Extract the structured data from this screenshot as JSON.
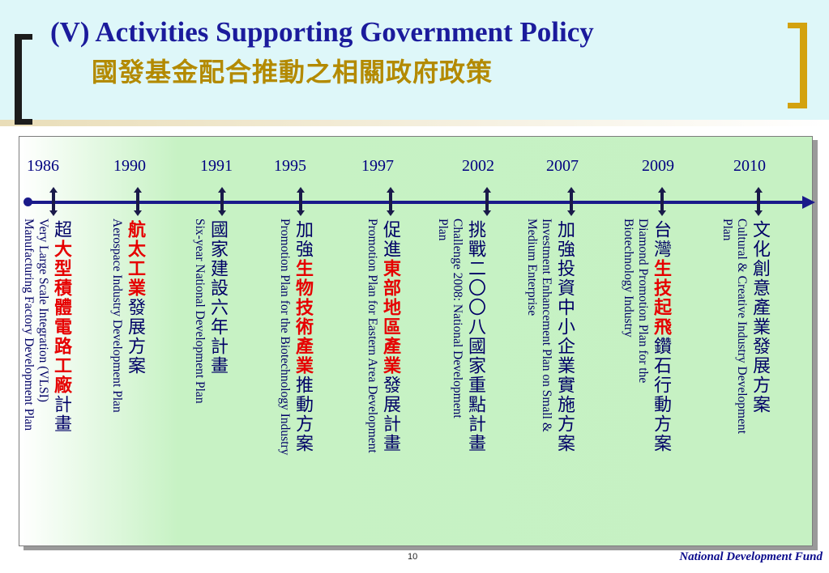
{
  "header": {
    "title_en": "(V) Activities Supporting Government Policy",
    "title_zh": "國發基金配合推動之相關政府政策"
  },
  "timeline": [
    {
      "year": "1986",
      "en": "Very Large Scale Integration (VLSI)\nManufacturing Factory Development Plan",
      "zh": [
        {
          "t": "超",
          "red": false
        },
        {
          "t": "大型積體電路工廠",
          "red": true
        },
        {
          "t": "計畫",
          "red": false
        }
      ]
    },
    {
      "year": "1990",
      "en": "Aerospace Industry Development Plan",
      "zh": [
        {
          "t": "航太工業",
          "red": true
        },
        {
          "t": "發展方案",
          "red": false
        }
      ]
    },
    {
      "year": "1991",
      "en": "Six-year National Development Plan",
      "zh": [
        {
          "t": "國家建設六年計畫",
          "red": false
        }
      ]
    },
    {
      "year": "1995",
      "en": "Promotion Plan for the Biotechnology Industry",
      "zh": [
        {
          "t": "加強",
          "red": false
        },
        {
          "t": "生物技術產業",
          "red": true
        },
        {
          "t": "推動方案",
          "red": false
        }
      ]
    },
    {
      "year": "1997",
      "en": "Promotion Plan for Eastern Area Development",
      "zh": [
        {
          "t": "促進",
          "red": false
        },
        {
          "t": "東部地區產業",
          "red": true
        },
        {
          "t": "發展計畫",
          "red": false
        }
      ]
    },
    {
      "year": "2002",
      "en": "Challenge 2008: National Development\nPlan",
      "zh": [
        {
          "t": "挑戰二〇〇八國家重點計畫",
          "red": false
        }
      ]
    },
    {
      "year": "2007",
      "en": "Investment Enhancement Plan on Small &\nMedium Enterprise",
      "zh": [
        {
          "t": "加強投資中小企業實施方案",
          "red": false
        }
      ]
    },
    {
      "year": "2009",
      "en": "Diamond Promotion Plan for the\nBiotechnology Industry",
      "zh": [
        {
          "t": "台灣",
          "red": false
        },
        {
          "t": "生技起飛",
          "red": true
        },
        {
          "t": "鑽石行動方案",
          "red": false
        }
      ]
    },
    {
      "year": "2010",
      "en": "Cultural & Creative Industry Development\nPlan",
      "zh": [
        {
          "t": "文化創意產業發展方案",
          "red": false
        }
      ]
    }
  ],
  "footer": {
    "page_number": "10",
    "brand": "National Development Fund"
  }
}
